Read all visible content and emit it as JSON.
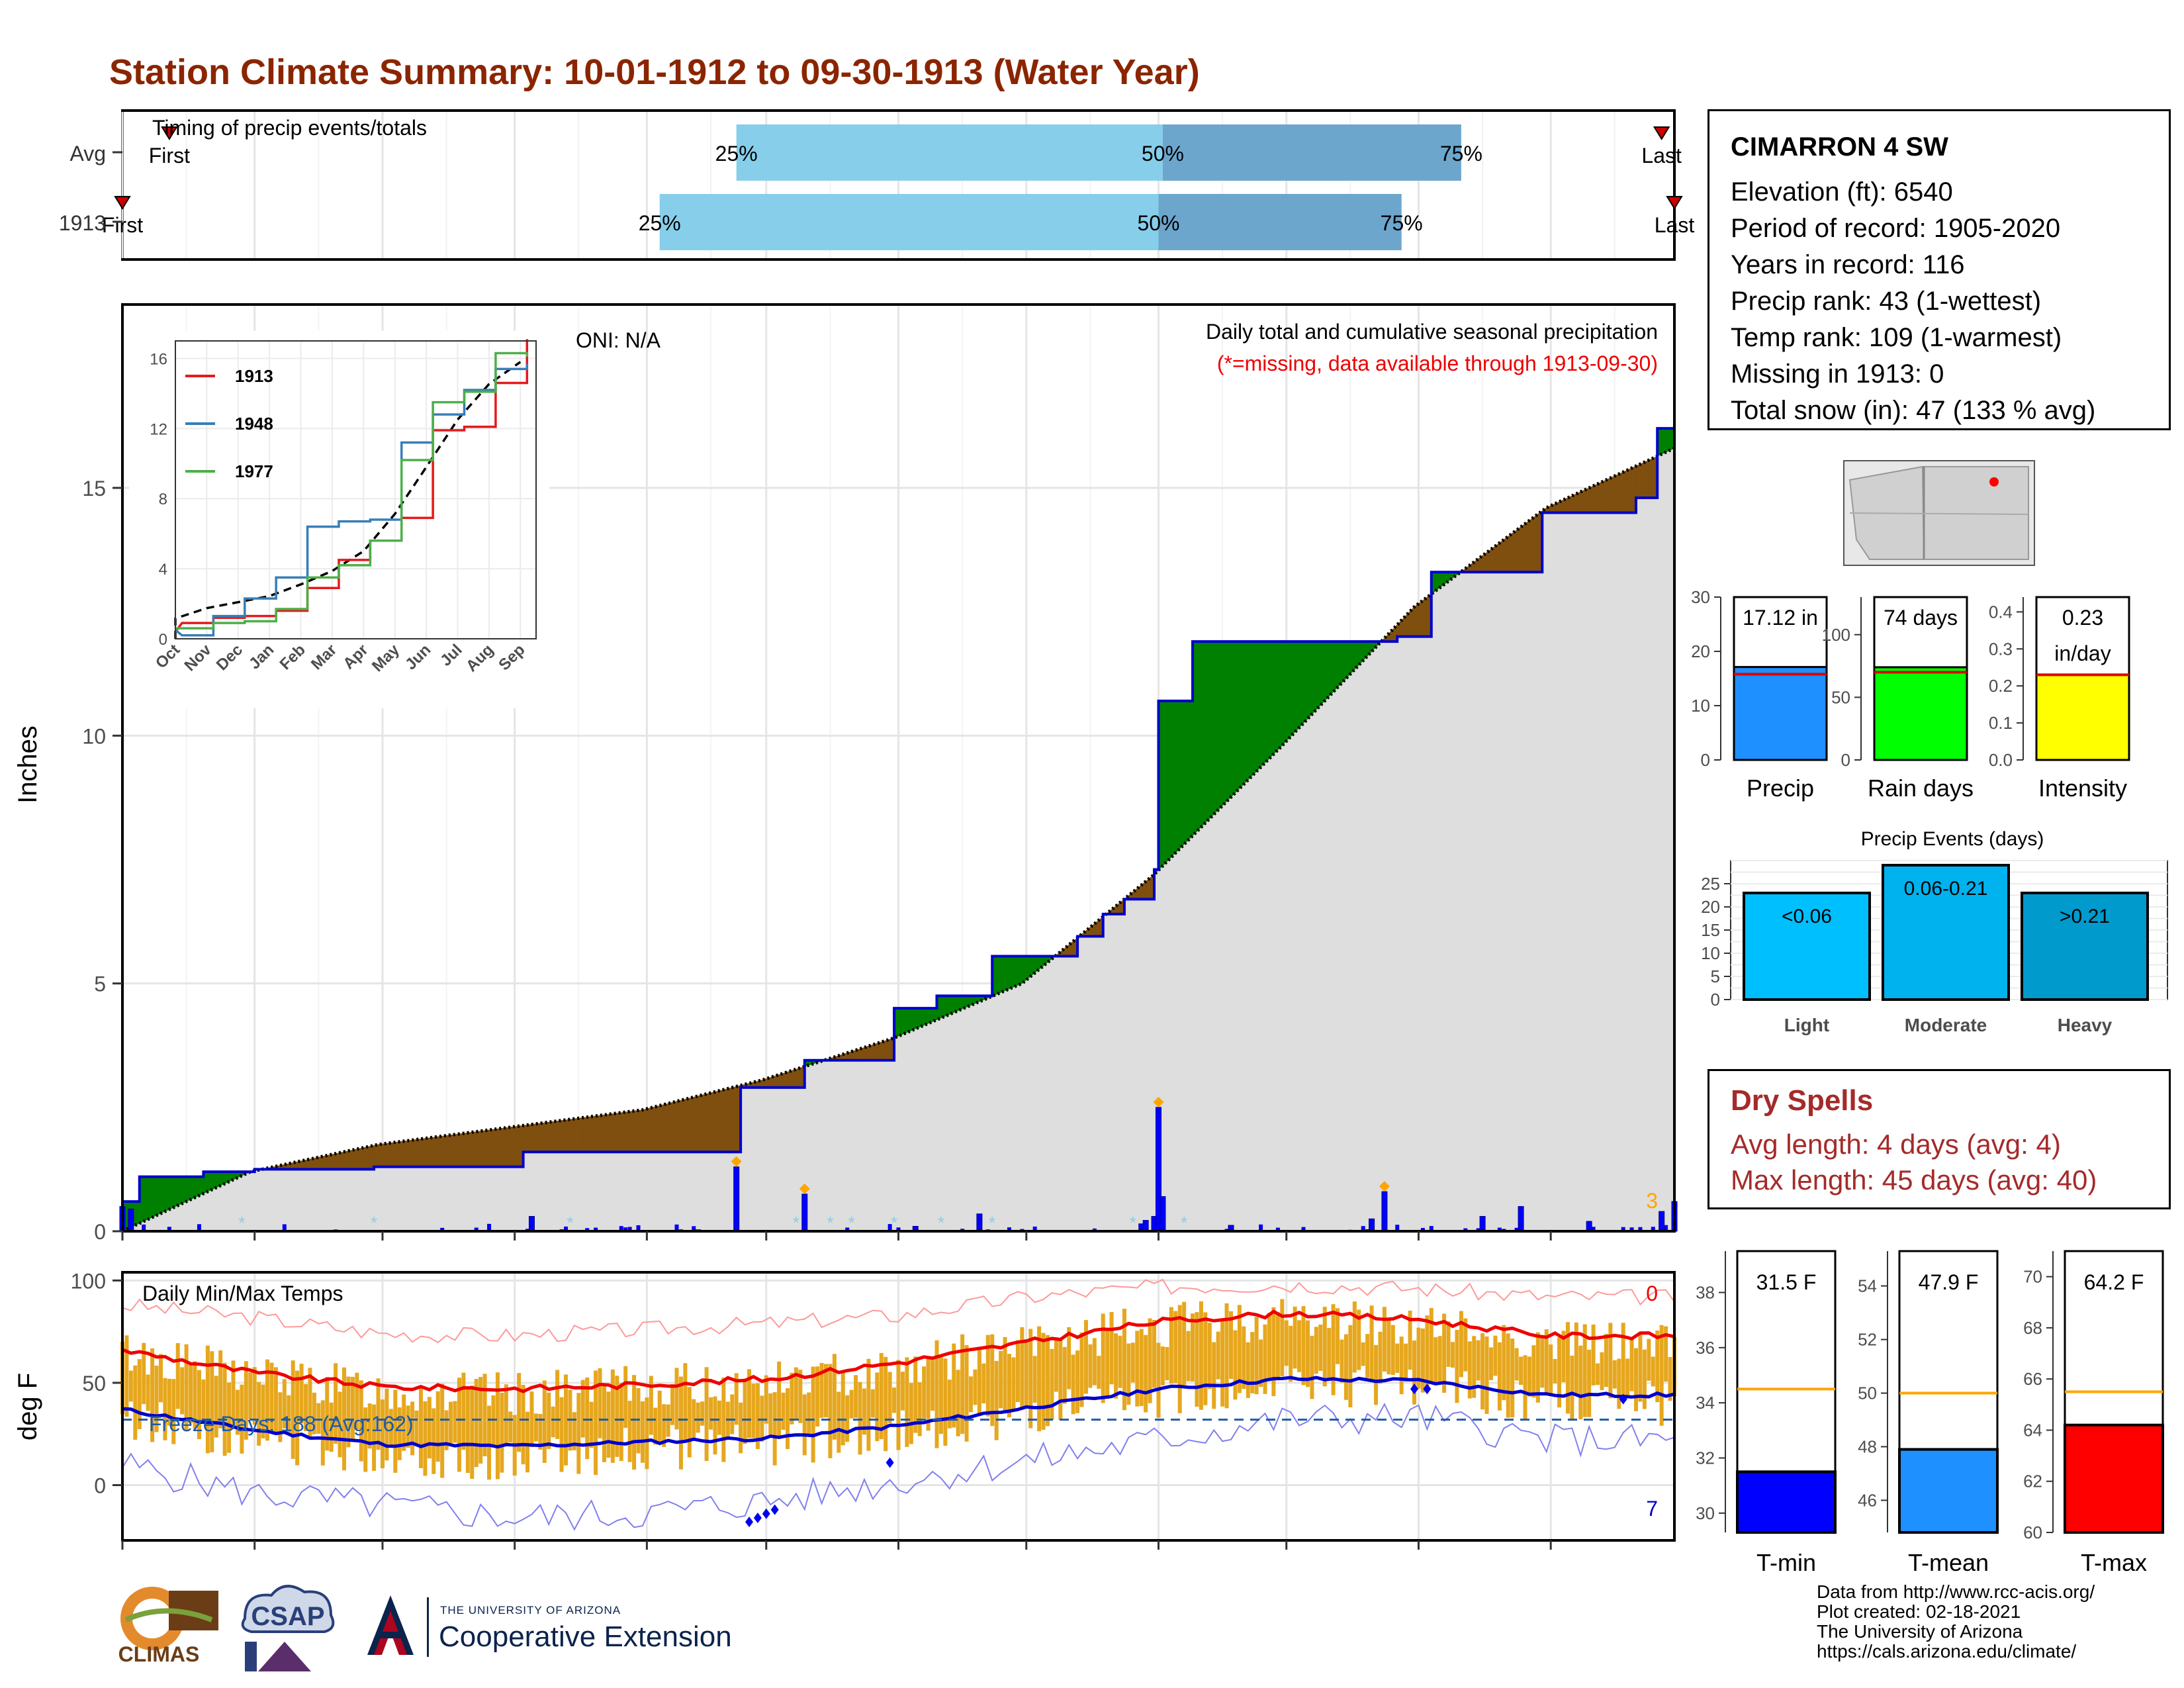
{
  "title": "Station Climate Summary: 10-01-1912 to 09-30-1913 (Water Year)",
  "colors": {
    "title": "#8b2500",
    "above_normal": "#008000",
    "below_normal": "#7f4f0f",
    "normal_fill": "#dedede",
    "obs_line": "#0000cc",
    "daily_precip": "#0000ff",
    "quartile_light": "#87ceeb",
    "quartile_dark": "#6ca6cd",
    "temp_bar": "#e6a71e",
    "tmax_line": "#ee0000",
    "tmin_line": "#0000cc",
    "dry_spell_text": "#a52a2a"
  },
  "months": [
    "Oct",
    "Nov",
    "Dec",
    "Jan",
    "Feb",
    "Mar",
    "Apr",
    "May",
    "Jun",
    "Jul",
    "Aug",
    "Sep"
  ],
  "timing_panel": {
    "label": "Timing of precip events/totals",
    "rows": [
      {
        "name": "Avg",
        "q25": "25%",
        "q50": "50%",
        "q75": "75%",
        "first": "First",
        "last": "Last",
        "q25_day": 145,
        "q50_day": 245,
        "q75_day": 315,
        "first_day": 12,
        "last_day": 362
      },
      {
        "name": "1913",
        "q25": "25%",
        "q50": "50%",
        "q75": "75%",
        "first": "First",
        "last": "Last",
        "q25_day": 127,
        "q50_day": 244,
        "q75_day": 301,
        "first_day": 1,
        "last_day": 365
      }
    ]
  },
  "precip_panel": {
    "ylabel": "Inches",
    "oni": "ONI: N/A",
    "caption": "Daily total and cumulative seasonal precipitation",
    "missing_note": "(*=missing, data available through 1913-09-30)",
    "corner_count": "3",
    "yticks": [
      0,
      5,
      10,
      15
    ]
  },
  "inset": {
    "legend": [
      "1913",
      "1948",
      "1977"
    ],
    "yticks": [
      0,
      4,
      8,
      12,
      16
    ]
  },
  "temp_panel": {
    "ylabel": "deg F",
    "title": "Daily Min/Max Temps",
    "freeze": "Freeze Days: 188 (Avg:162)",
    "top_count": "0",
    "bottom_count": "7",
    "yticks": [
      0,
      50,
      100
    ]
  },
  "station": {
    "name": "CIMARRON 4 SW",
    "lines": [
      "Elevation (ft): 6540",
      "Period of record: 1905-2020",
      "Years in record: 116",
      "Precip rank: 43 (1-wettest)",
      "Temp rank: 109 (1-warmest)",
      "Missing in 1913: 0",
      "Total snow (in): 47 (133 % avg)"
    ]
  },
  "mini_bars": [
    {
      "label": "Precip",
      "value_label": "17.12 in",
      "value": 17.12,
      "avg": 15.8,
      "ymax": 30,
      "ticks": [
        0,
        10,
        20,
        30
      ],
      "color": "#1e90ff"
    },
    {
      "label": "Rain days",
      "value_label": "74 days",
      "value": 74,
      "avg": 70,
      "ymax": 130,
      "ticks": [
        0,
        50,
        100
      ],
      "color": "#00ff00"
    },
    {
      "label": "Intensity",
      "value_label": "0.23",
      "value_label2": "in/day",
      "value": 0.23,
      "avg": 0.23,
      "ymax": 0.44,
      "ticks": [
        "0.0",
        "0.1",
        "0.2",
        "0.3",
        "0.4"
      ],
      "color": "#ffff00"
    }
  ],
  "precip_events": {
    "title": "Precip Events (days)",
    "bars": [
      {
        "label": "Light",
        "range": "<0.06",
        "value": 23,
        "color": "#00bfff"
      },
      {
        "label": "Moderate",
        "range": "0.06-0.21",
        "value": 29,
        "color": "#00b2ee"
      },
      {
        "label": "Heavy",
        "range": ">0.21",
        "value": 23,
        "color": "#009acd"
      }
    ],
    "yticks": [
      0,
      5,
      10,
      15,
      20,
      25
    ]
  },
  "dry_spells": {
    "title": "Dry Spells",
    "avg_length": "Avg length: 4 days (avg: 4)",
    "max_length": "Max length: 45 days (avg: 40)"
  },
  "temp_bars": [
    {
      "label": "T-min",
      "value_label": "31.5 F",
      "value": 31.5,
      "avg": 34.5,
      "ymin": 29.3,
      "ymax": 39.5,
      "ticks": [
        30,
        32,
        34,
        36,
        38
      ],
      "color": "#0000ff"
    },
    {
      "label": "T-mean",
      "value_label": "47.9 F",
      "value": 47.9,
      "avg": 50.0,
      "ymin": 44.8,
      "ymax": 55.3,
      "ticks": [
        46,
        48,
        50,
        52,
        54
      ],
      "color": "#1e90ff"
    },
    {
      "label": "T-max",
      "value_label": "64.2 F",
      "value": 64.2,
      "avg": 65.5,
      "ymin": 60.0,
      "ymax": 71.0,
      "ticks": [
        60,
        62,
        64,
        66,
        68,
        70
      ],
      "color": "#ff0000"
    }
  ],
  "footer": {
    "lines": [
      "Data from http://www.rcc-acis.org/",
      "Plot created: 02-18-2021",
      "The University of Arizona",
      "https://cals.arizona.edu/climate/"
    ],
    "logo_climas": "CLIMAS",
    "logo_csap": "CSAP",
    "ua_small": "THE UNIVERSITY OF ARIZONA",
    "ua_big": "Cooperative Extension"
  },
  "chart_data": [
    {
      "type": "area",
      "title": "Daily total and cumulative seasonal precipitation",
      "ylabel": "Inches",
      "ylim": [
        0,
        18.7
      ],
      "x_unit": "day of water year (1 = Oct 1)",
      "observed_cumulative": [
        {
          "day": 1,
          "value": 0.6
        },
        {
          "day": 5,
          "value": 1.1
        },
        {
          "day": 20,
          "value": 1.2
        },
        {
          "day": 32,
          "value": 1.25
        },
        {
          "day": 60,
          "value": 1.3
        },
        {
          "day": 95,
          "value": 1.6
        },
        {
          "day": 136,
          "value": 1.6
        },
        {
          "day": 146,
          "value": 2.9
        },
        {
          "day": 161,
          "value": 3.45
        },
        {
          "day": 182,
          "value": 4.5
        },
        {
          "day": 192,
          "value": 4.75
        },
        {
          "day": 205,
          "value": 5.55
        },
        {
          "day": 225,
          "value": 5.95
        },
        {
          "day": 231,
          "value": 6.4
        },
        {
          "day": 236,
          "value": 6.7
        },
        {
          "day": 243,
          "value": 7.3
        },
        {
          "day": 244,
          "value": 10.7
        },
        {
          "day": 252,
          "value": 11.9
        },
        {
          "day": 300,
          "value": 12.0
        },
        {
          "day": 308,
          "value": 13.3
        },
        {
          "day": 334,
          "value": 14.5
        },
        {
          "day": 356,
          "value": 14.8
        },
        {
          "day": 361,
          "value": 16.2
        },
        {
          "day": 365,
          "value": 17.12
        }
      ],
      "normal_cumulative": [
        {
          "day": 1,
          "value": 0.0
        },
        {
          "day": 31,
          "value": 1.2
        },
        {
          "day": 61,
          "value": 1.75
        },
        {
          "day": 92,
          "value": 2.1
        },
        {
          "day": 123,
          "value": 2.45
        },
        {
          "day": 151,
          "value": 3.05
        },
        {
          "day": 182,
          "value": 3.9
        },
        {
          "day": 212,
          "value": 5.0
        },
        {
          "day": 243,
          "value": 7.2
        },
        {
          "day": 273,
          "value": 9.8
        },
        {
          "day": 304,
          "value": 12.6
        },
        {
          "day": 335,
          "value": 14.6
        },
        {
          "day": 365,
          "value": 15.8
        }
      ],
      "daily_precip": [
        {
          "day": 1,
          "value": 0.5
        },
        {
          "day": 3,
          "value": 0.45
        },
        {
          "day": 97,
          "value": 0.3
        },
        {
          "day": 136,
          "value": 0.03
        },
        {
          "day": 145,
          "value": 1.3
        },
        {
          "day": 161,
          "value": 0.75
        },
        {
          "day": 187,
          "value": 0.1
        },
        {
          "day": 202,
          "value": 0.35
        },
        {
          "day": 240,
          "value": 0.15
        },
        {
          "day": 241,
          "value": 0.22
        },
        {
          "day": 243,
          "value": 0.3
        },
        {
          "day": 244,
          "value": 2.5
        },
        {
          "day": 245,
          "value": 0.7
        },
        {
          "day": 261,
          "value": 0.12
        },
        {
          "day": 294,
          "value": 0.25
        },
        {
          "day": 297,
          "value": 0.8
        },
        {
          "day": 320,
          "value": 0.3
        },
        {
          "day": 329,
          "value": 0.5
        },
        {
          "day": 345,
          "value": 0.2
        },
        {
          "day": 362,
          "value": 0.4
        },
        {
          "day": 365,
          "value": 0.6
        }
      ]
    },
    {
      "type": "line",
      "title": "",
      "x": [
        "Oct",
        "Nov",
        "Dec",
        "Jan",
        "Feb",
        "Mar",
        "Apr",
        "May",
        "Jun",
        "Jul",
        "Aug",
        "Sep"
      ],
      "ylim": [
        0,
        17
      ],
      "series": [
        {
          "name": "1913",
          "values": [
            0.9,
            1.2,
            1.3,
            1.6,
            2.9,
            4.5,
            5.6,
            6.9,
            11.9,
            12.1,
            14.6,
            17.1
          ]
        },
        {
          "name": "1948",
          "values": [
            0.2,
            1.3,
            2.3,
            3.5,
            6.4,
            6.7,
            6.8,
            11.2,
            12.8,
            14.2,
            15.4,
            15.7
          ]
        },
        {
          "name": "1977",
          "values": [
            0.6,
            0.9,
            1.0,
            1.7,
            3.5,
            4.2,
            5.6,
            10.2,
            13.5,
            14.1,
            16.3,
            16.1
          ]
        }
      ]
    },
    {
      "type": "bar",
      "title": "Daily Min/Max Temps",
      "ylabel": "deg F",
      "ylim": [
        -27,
        104
      ],
      "x": [
        "Oct",
        "Nov",
        "Dec",
        "Jan",
        "Feb",
        "Mar",
        "Apr",
        "May",
        "Jun",
        "Jul",
        "Aug",
        "Sep"
      ],
      "series": [
        {
          "name": "tmax_normal",
          "values": [
            66,
            55,
            48,
            47,
            49,
            52,
            60,
            70,
            80,
            84,
            81,
            73
          ]
        },
        {
          "name": "tmin_normal",
          "values": [
            37,
            27,
            20,
            19,
            21,
            23,
            29,
            38,
            47,
            52,
            51,
            44
          ]
        },
        {
          "name": "tmax_observed",
          "values": [
            65,
            54,
            46,
            44,
            48,
            50,
            58,
            68,
            78,
            82,
            78,
            70
          ]
        },
        {
          "name": "tmin_observed",
          "values": [
            33,
            23,
            16,
            12,
            18,
            20,
            26,
            34,
            42,
            49,
            49,
            40
          ]
        },
        {
          "name": "record_high",
          "values": [
            88,
            82,
            74,
            73,
            76,
            79,
            83,
            92,
            97,
            98,
            96,
            92
          ]
        },
        {
          "name": "record_low",
          "values": [
            10,
            -4,
            -10,
            -16,
            -14,
            -8,
            2,
            12,
            22,
            32,
            33,
            22
          ]
        }
      ]
    },
    {
      "type": "bar",
      "title": "Precip Events (days)",
      "categories": [
        "Light",
        "Moderate",
        "Heavy"
      ],
      "values": [
        23,
        29,
        23
      ],
      "ylim": [
        0,
        30
      ]
    }
  ]
}
